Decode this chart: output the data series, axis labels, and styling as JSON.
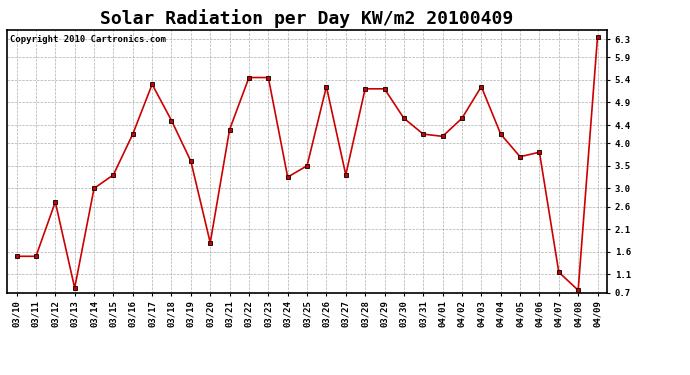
{
  "title": "Solar Radiation per Day KW/m2 20100409",
  "copyright": "Copyright 2010 Cartronics.com",
  "dates": [
    "03/10",
    "03/11",
    "03/12",
    "03/13",
    "03/14",
    "03/15",
    "03/16",
    "03/17",
    "03/18",
    "03/19",
    "03/20",
    "03/21",
    "03/22",
    "03/23",
    "03/24",
    "03/25",
    "03/26",
    "03/27",
    "03/28",
    "03/29",
    "03/30",
    "03/31",
    "04/01",
    "04/02",
    "04/03",
    "04/04",
    "04/05",
    "04/06",
    "04/07",
    "04/08",
    "04/09"
  ],
  "values": [
    1.5,
    1.5,
    2.7,
    0.8,
    3.0,
    3.3,
    4.2,
    5.3,
    4.5,
    3.6,
    1.8,
    4.3,
    5.45,
    5.45,
    3.25,
    3.5,
    5.25,
    3.3,
    5.2,
    5.2,
    4.55,
    4.2,
    4.15,
    4.55,
    5.25,
    4.2,
    3.7,
    3.8,
    1.15,
    0.75,
    6.35
  ],
  "line_color": "#cc0000",
  "marker": "s",
  "marker_size": 3,
  "marker_color": "#000000",
  "bg_color": "#ffffff",
  "plot_bg_color": "#ffffff",
  "grid_color": "#999999",
  "ylim": [
    0.7,
    6.5
  ],
  "yticks": [
    0.7,
    1.1,
    1.6,
    2.1,
    2.6,
    3.0,
    3.5,
    4.0,
    4.4,
    4.9,
    5.4,
    5.9,
    6.3
  ],
  "title_fontsize": 13,
  "copyright_fontsize": 6.5,
  "tick_fontsize": 6.5,
  "fig_width": 6.9,
  "fig_height": 3.75,
  "dpi": 100
}
